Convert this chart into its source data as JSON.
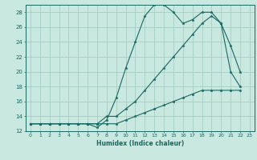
{
  "xlabel": "Humidex (Indice chaleur)",
  "background_color": "#c8e8e0",
  "grid_color": "#a0c8c0",
  "line_color": "#1a6860",
  "xlim": [
    -0.5,
    23.5
  ],
  "ylim": [
    12,
    29
  ],
  "xticks": [
    0,
    1,
    2,
    3,
    4,
    5,
    6,
    7,
    8,
    9,
    10,
    11,
    12,
    13,
    14,
    15,
    16,
    17,
    18,
    19,
    20,
    21,
    22,
    23
  ],
  "yticks": [
    12,
    14,
    16,
    18,
    20,
    22,
    24,
    26,
    28
  ],
  "series": [
    {
      "x": [
        0,
        1,
        2,
        3,
        4,
        5,
        6,
        7,
        8,
        9,
        10,
        11,
        12,
        13,
        14,
        15,
        16,
        17,
        18,
        19,
        20,
        21,
        22
      ],
      "y": [
        13,
        13,
        13,
        13,
        13,
        13,
        13,
        12.5,
        13.5,
        16.5,
        20.5,
        24,
        27.5,
        29,
        29,
        28,
        26.5,
        27,
        28,
        28,
        26.5,
        23.5,
        20
      ]
    },
    {
      "x": [
        0,
        1,
        2,
        3,
        4,
        5,
        6,
        7,
        8,
        9,
        10,
        11,
        12,
        13,
        14,
        15,
        16,
        17,
        18,
        19,
        20,
        21,
        22
      ],
      "y": [
        13,
        13,
        13,
        13,
        13,
        13,
        13,
        13,
        14,
        14,
        15,
        16,
        17.5,
        19,
        20.5,
        22,
        23.5,
        25,
        26.5,
        27.5,
        26.5,
        20,
        18
      ]
    },
    {
      "x": [
        0,
        1,
        2,
        3,
        4,
        5,
        6,
        7,
        8,
        9,
        10,
        11,
        12,
        13,
        14,
        15,
        16,
        17,
        18,
        19,
        20,
        21,
        22
      ],
      "y": [
        13,
        13,
        13,
        13,
        13,
        13,
        13,
        13,
        13,
        13,
        13.5,
        14,
        14.5,
        15,
        15.5,
        16,
        16.5,
        17,
        17.5,
        17.5,
        17.5,
        17.5,
        17.5
      ]
    }
  ],
  "xlabel_fontsize": 5.5,
  "tick_fontsize": 4.5,
  "ytick_fontsize": 5.0,
  "linewidth": 0.8,
  "markersize": 2.5
}
